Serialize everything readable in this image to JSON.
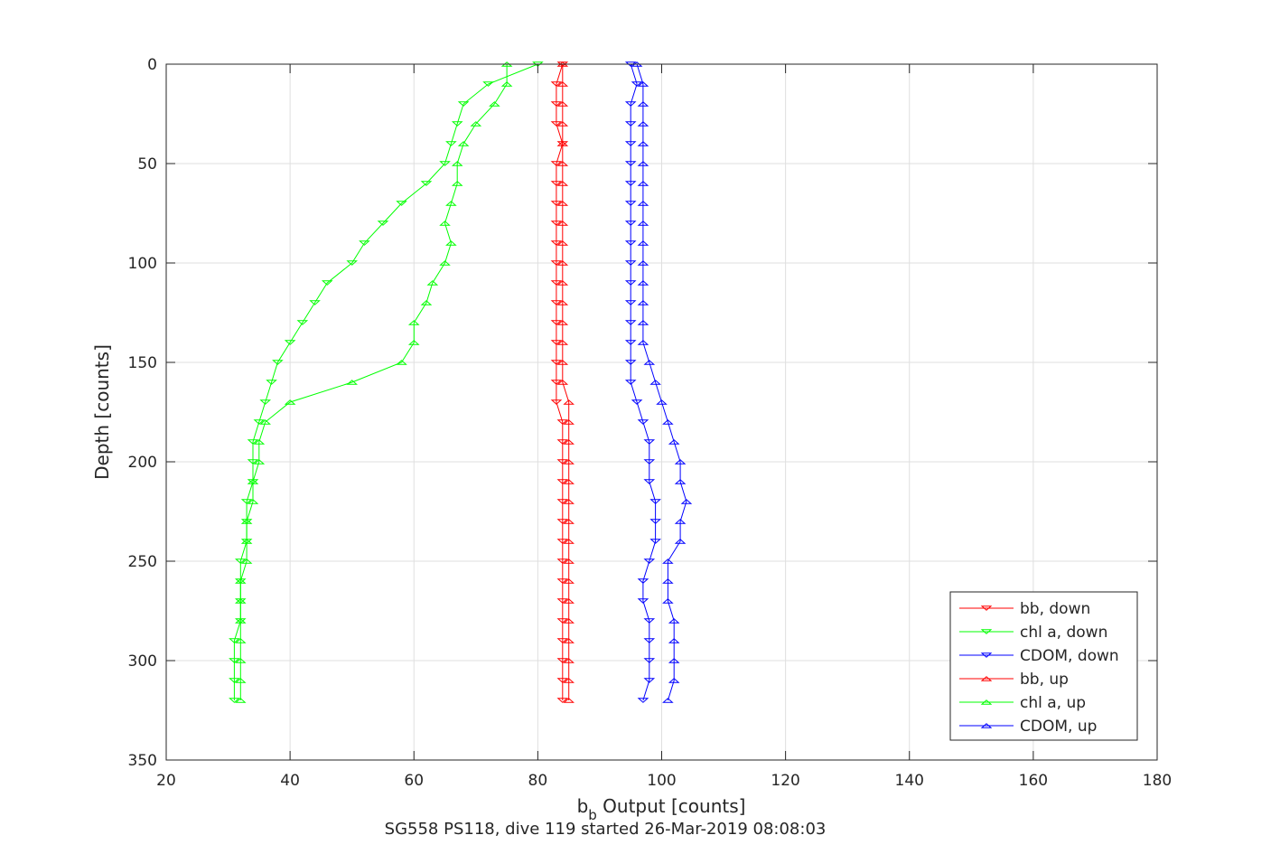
{
  "chart_data": {
    "type": "line",
    "title": "",
    "xlabel_main": "b",
    "xlabel_sub": "b",
    "xlabel_rest": " Output [counts]",
    "caption": "SG558 PS118, dive 119 started 26-Mar-2019 08:08:03",
    "ylabel": "Depth [counts]",
    "xlim": [
      20,
      180
    ],
    "ylim": [
      0,
      350
    ],
    "y_reversed": true,
    "grid": true,
    "legend_position": "lower-right",
    "xticks": [
      "20",
      "40",
      "60",
      "80",
      "100",
      "120",
      "140",
      "160",
      "180"
    ],
    "yticks": [
      "0",
      "50",
      "100",
      "150",
      "200",
      "250",
      "300",
      "350"
    ],
    "depth": [
      0,
      10,
      20,
      30,
      40,
      50,
      60,
      70,
      80,
      90,
      100,
      110,
      120,
      130,
      140,
      150,
      160,
      170,
      180,
      190,
      200,
      210,
      220,
      230,
      240,
      250,
      260,
      270,
      280,
      290,
      300,
      310,
      320
    ],
    "series": [
      {
        "name": "bb, down",
        "color": "#ff0000",
        "marker": "triangle-down",
        "values": [
          84,
          83,
          83,
          83,
          84,
          83,
          83,
          83,
          83,
          83,
          83,
          83,
          83,
          83,
          83,
          83,
          83,
          83,
          84,
          84,
          84,
          84,
          84,
          84,
          84,
          84,
          84,
          84,
          84,
          84,
          84,
          84,
          84
        ]
      },
      {
        "name": "chl a, down",
        "color": "#00ff00",
        "marker": "triangle-down",
        "values": [
          80,
          72,
          68,
          67,
          66,
          65,
          62,
          58,
          55,
          52,
          50,
          46,
          44,
          42,
          40,
          38,
          37,
          36,
          35,
          34,
          34,
          34,
          33,
          33,
          33,
          32,
          32,
          32,
          32,
          31,
          31,
          31,
          31
        ]
      },
      {
        "name": "CDOM, down",
        "color": "#0000ff",
        "marker": "triangle-down",
        "values": [
          95,
          96,
          95,
          95,
          95,
          95,
          95,
          95,
          95,
          95,
          95,
          95,
          95,
          95,
          95,
          95,
          95,
          96,
          97,
          98,
          98,
          98,
          99,
          99,
          99,
          98,
          97,
          97,
          98,
          98,
          98,
          98,
          97
        ]
      },
      {
        "name": "bb, up",
        "color": "#ff0000",
        "marker": "triangle-up",
        "values": [
          84,
          84,
          84,
          84,
          84,
          84,
          84,
          84,
          84,
          84,
          84,
          84,
          84,
          84,
          84,
          84,
          84,
          85,
          85,
          85,
          85,
          85,
          85,
          85,
          85,
          85,
          85,
          85,
          85,
          85,
          85,
          85,
          85
        ]
      },
      {
        "name": "chl a, up",
        "color": "#00ff00",
        "marker": "triangle-up",
        "values": [
          75,
          75,
          73,
          70,
          68,
          67,
          67,
          66,
          65,
          66,
          65,
          63,
          62,
          60,
          60,
          58,
          50,
          40,
          36,
          35,
          35,
          34,
          34,
          33,
          33,
          33,
          32,
          32,
          32,
          32,
          32,
          32,
          32
        ]
      },
      {
        "name": "CDOM, up",
        "color": "#0000ff",
        "marker": "triangle-up",
        "values": [
          96,
          97,
          97,
          97,
          97,
          97,
          97,
          97,
          97,
          97,
          97,
          97,
          97,
          97,
          97,
          98,
          99,
          100,
          101,
          102,
          103,
          103,
          104,
          103,
          103,
          101,
          101,
          101,
          102,
          102,
          102,
          102,
          101
        ]
      }
    ]
  }
}
